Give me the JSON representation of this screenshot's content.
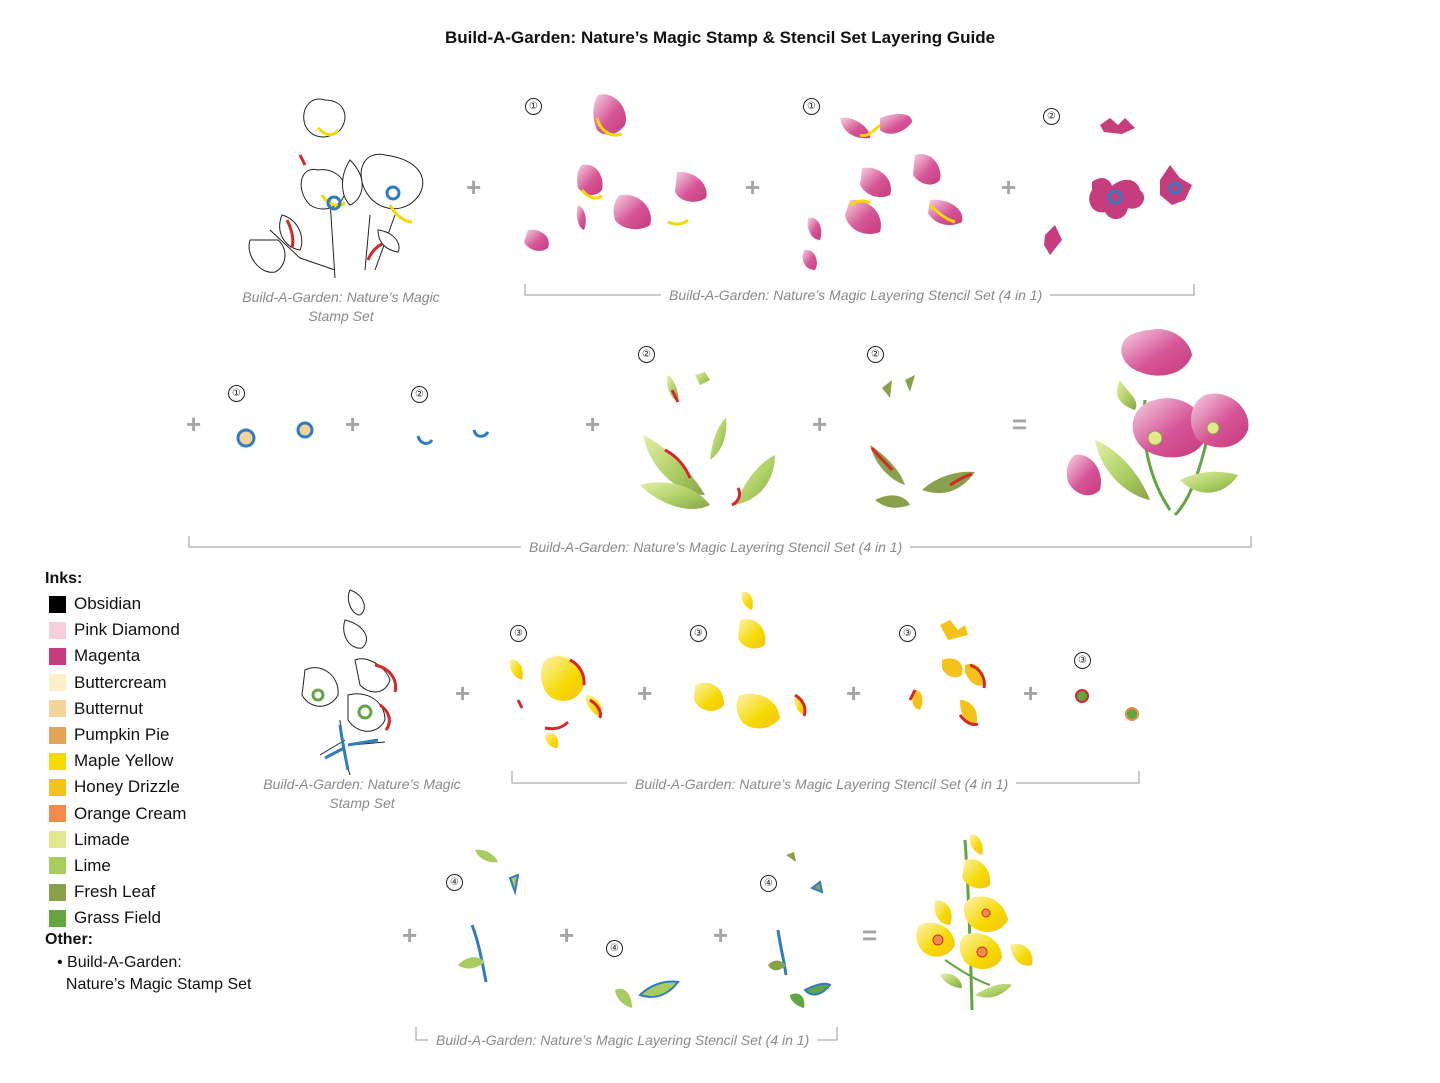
{
  "title": "Build-A-Garden: Nature’s Magic Stamp & Stencil Set Layering Guide",
  "captions": {
    "stamp_set": "Build-A-Garden: Nature’s Magic Stamp Set",
    "stencil_set": "Build-A-Garden: Nature’s Magic Layering Stencil Set (4 in 1)"
  },
  "operators": {
    "plus": "+",
    "equals": "="
  },
  "steps": {
    "one": "①",
    "two": "②",
    "three": "③",
    "four": "④"
  },
  "legend": {
    "inks_heading": "Inks:",
    "inks": [
      {
        "name": "Obsidian",
        "color": "#000000"
      },
      {
        "name": "Pink Diamond",
        "color": "#f6cfdd"
      },
      {
        "name": "Magenta",
        "color": "#c63c7d"
      },
      {
        "name": "Buttercream",
        "color": "#fdf0c4"
      },
      {
        "name": "Butternut",
        "color": "#f1d499"
      },
      {
        "name": "Pumpkin Pie",
        "color": "#e2a358"
      },
      {
        "name": "Maple Yellow",
        "color": "#f6d900"
      },
      {
        "name": "Honey Drizzle",
        "color": "#f4c21a"
      },
      {
        "name": "Orange Cream",
        "color": "#ef8c4c"
      },
      {
        "name": "Limade",
        "color": "#dfe88c"
      },
      {
        "name": "Lime",
        "color": "#a8cc5f"
      },
      {
        "name": "Fresh Leaf",
        "color": "#8aa14b"
      },
      {
        "name": "Grass Field",
        "color": "#63a541"
      }
    ],
    "other_heading": "Other:",
    "other_line1": "Build-A-Garden:",
    "other_line2": "Nature’s Magic Stamp Set"
  }
}
